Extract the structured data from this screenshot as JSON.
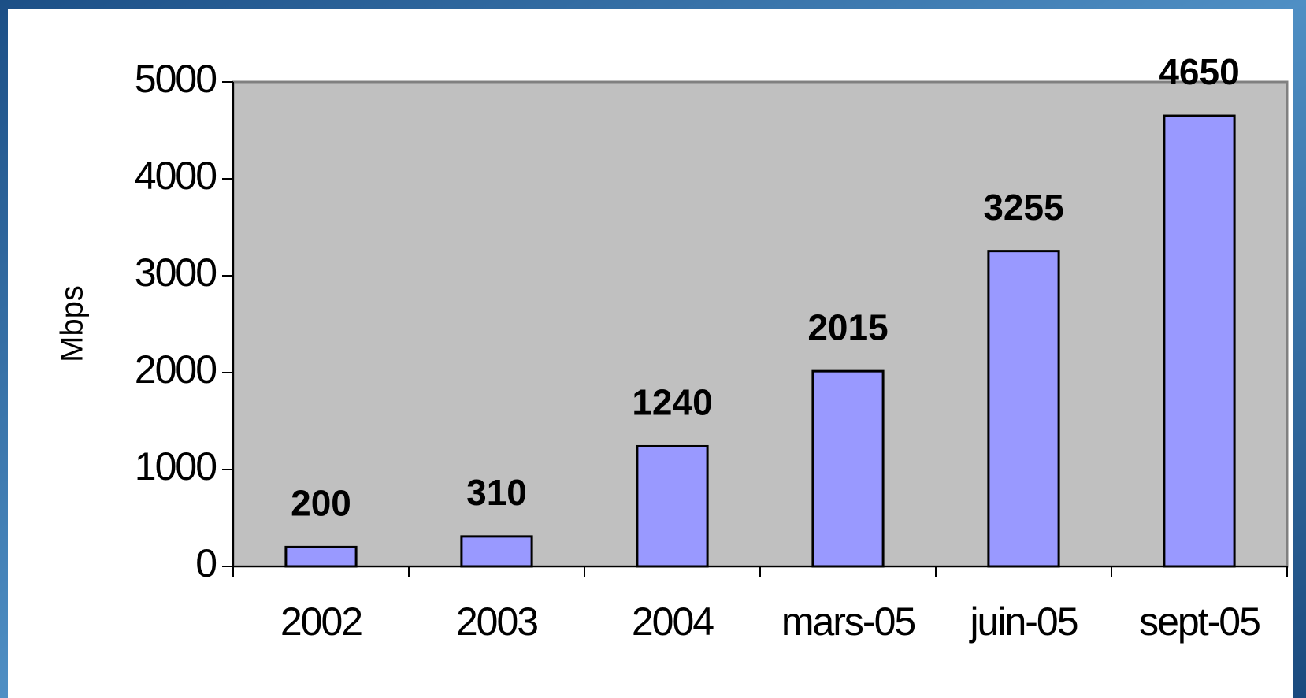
{
  "chart_data": {
    "type": "bar",
    "y_label": "Mbps",
    "categories": [
      "2002",
      "2003",
      "2004",
      "mars-05",
      "juin-05",
      "sept-05"
    ],
    "values": [
      200,
      310,
      1240,
      2015,
      3255,
      4650
    ],
    "color": "#9999ff",
    "ylim": [
      0,
      5000
    ],
    "yticks": [
      0,
      1000,
      2000,
      3000,
      4000,
      5000
    ],
    "grid": false
  }
}
